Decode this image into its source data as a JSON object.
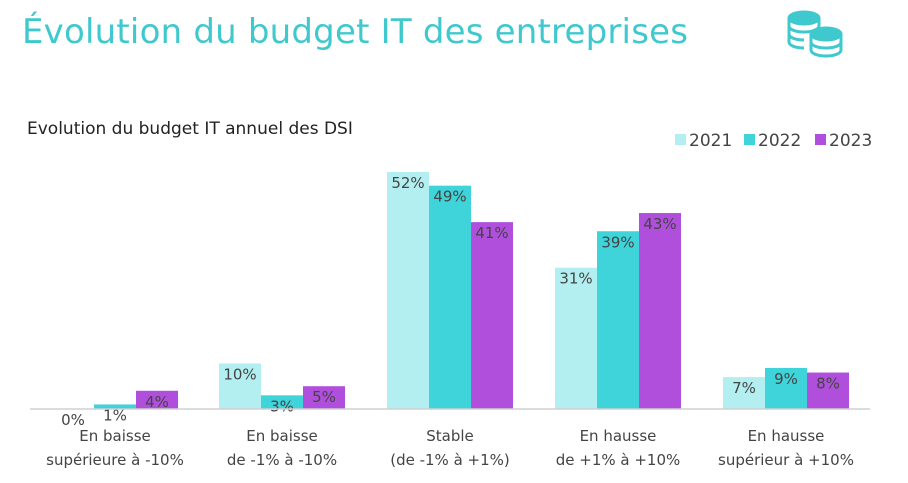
{
  "header": {
    "title": "Évolution du budget IT des entreprises",
    "icon": "coins-icon",
    "accent_color": "#3fc9cf"
  },
  "chart_data": {
    "type": "bar",
    "title": "Evolution du budget IT annuel des DSI",
    "xlabel": "",
    "ylabel": "",
    "ylim": [
      0,
      55
    ],
    "grid": false,
    "legend_position": "top-right",
    "categories": [
      [
        "En baisse",
        "supérieure à -10%"
      ],
      [
        "En baisse",
        "de -1% à -10%"
      ],
      [
        "Stable",
        "(de -1% à +1%)"
      ],
      [
        "En hausse",
        "de +1% à +10%"
      ],
      [
        "En hausse",
        "supérieur à +10%"
      ]
    ],
    "series": [
      {
        "name": "2021",
        "color": "#b3eff0",
        "values": [
          0,
          10,
          52,
          31,
          7
        ],
        "labels": [
          "0%",
          "10%",
          "52%",
          "31%",
          "7%"
        ]
      },
      {
        "name": "2022",
        "color": "#3fd3da",
        "values": [
          1,
          3,
          49,
          39,
          9
        ],
        "labels": [
          "1%",
          "3%",
          "49%",
          "39%",
          "9%"
        ]
      },
      {
        "name": "2023",
        "color": "#b14fdd",
        "values": [
          4,
          5,
          41,
          43,
          8
        ],
        "labels": [
          "4%",
          "5%",
          "41%",
          "43%",
          "8%"
        ]
      }
    ]
  }
}
